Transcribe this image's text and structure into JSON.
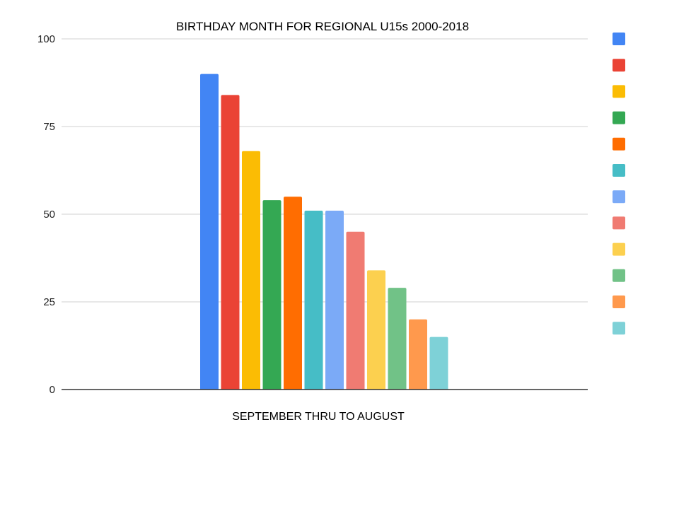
{
  "chart_data": {
    "type": "bar",
    "title": "BIRTHDAY MONTH FOR REGIONAL U15s 2000-2018",
    "xlabel": "SEPTEMBER THRU TO AUGUST",
    "ylabel": "",
    "ylim": [
      0,
      100
    ],
    "yticks": [
      "0",
      "25",
      "50",
      "75",
      "100"
    ],
    "grid": true,
    "legend_position": "right",
    "series": [
      {
        "values": [
          90
        ],
        "color": "#4285f4"
      },
      {
        "values": [
          84
        ],
        "color": "#ea4335"
      },
      {
        "values": [
          68
        ],
        "color": "#fbbc04"
      },
      {
        "values": [
          54
        ],
        "color": "#34a853"
      },
      {
        "values": [
          55
        ],
        "color": "#ff6d01"
      },
      {
        "values": [
          51
        ],
        "color": "#46bdc6"
      },
      {
        "values": [
          51
        ],
        "color": "#7baaf7"
      },
      {
        "values": [
          45
        ],
        "color": "#f07b72"
      },
      {
        "values": [
          34
        ],
        "color": "#fcd04f"
      },
      {
        "values": [
          29
        ],
        "color": "#71c287"
      },
      {
        "values": [
          20
        ],
        "color": "#ff994d"
      },
      {
        "values": [
          15
        ],
        "color": "#7ed1d7"
      }
    ]
  }
}
